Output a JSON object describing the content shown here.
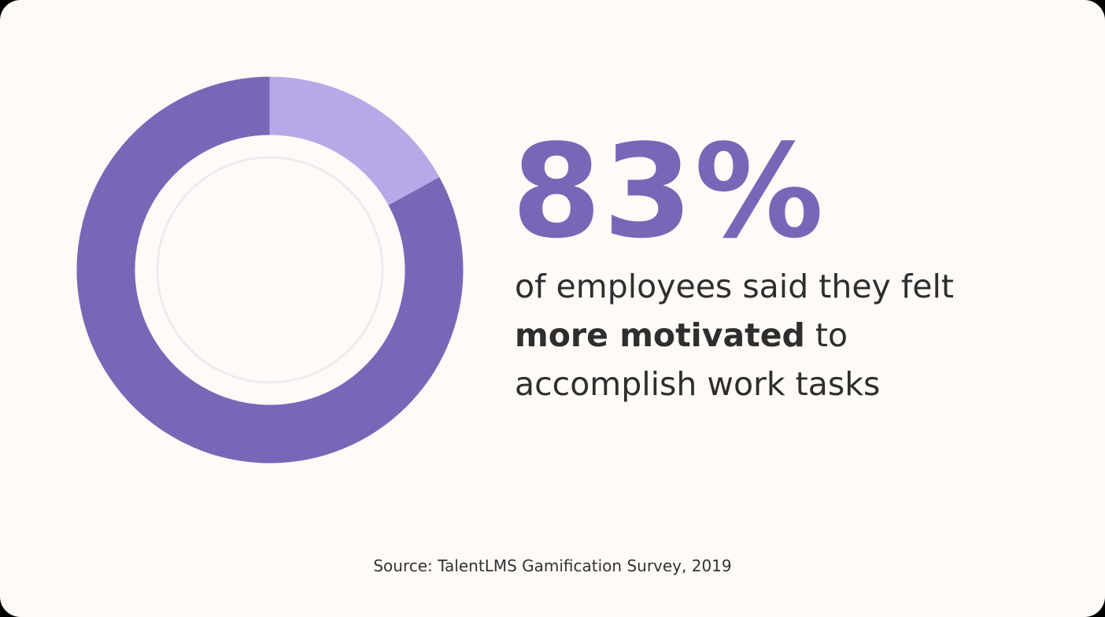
{
  "chart_data": {
    "type": "pie",
    "variant": "donut",
    "value_percent": 83,
    "slices": [
      {
        "value": 83,
        "color": "#7867b7"
      },
      {
        "value": 17,
        "color": "#b7a8e8"
      }
    ]
  },
  "headline": {
    "stat": "83%",
    "line1": "of employees said they felt",
    "bold": "more motivated",
    "line2_rest": " to",
    "line3": "accomplish work tasks"
  },
  "footer": {
    "source": "Source: TalentLMS Gamification Survey, 2019"
  },
  "colors": {
    "background": "#fdfaf7",
    "accent": "#7867b7",
    "accent_light": "#b7a8e8",
    "inner_ring": "#ecebef",
    "text": "#2e2e2e"
  }
}
